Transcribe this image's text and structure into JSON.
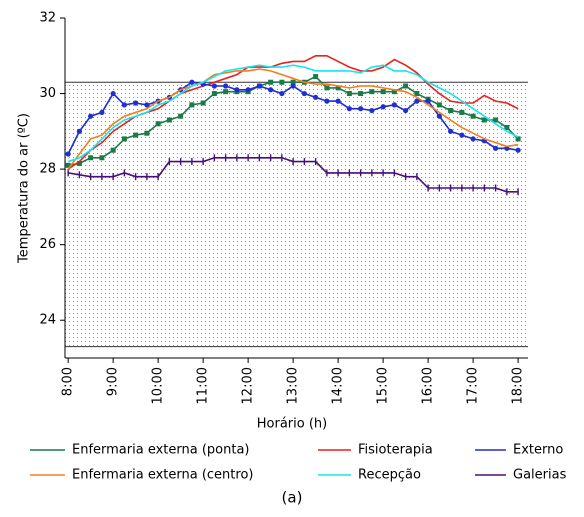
{
  "chart_data": {
    "type": "line",
    "xlabel": "Horário (h)",
    "ylabel": "Temperatura do ar (ºC)",
    "caption": "(a)",
    "x": [
      8,
      8.25,
      8.5,
      8.75,
      9,
      9.25,
      9.5,
      9.75,
      10,
      10.25,
      10.5,
      10.75,
      11,
      11.25,
      11.5,
      11.75,
      12,
      12.25,
      12.5,
      12.75,
      13,
      13.25,
      13.5,
      13.75,
      14,
      14.25,
      14.5,
      14.75,
      15,
      15.25,
      15.5,
      15.75,
      16,
      16.25,
      16.5,
      16.75,
      17,
      17.25,
      17.5,
      17.75,
      18
    ],
    "xlim": [
      7.93,
      18.22
    ],
    "xticks": [
      {
        "value": 8,
        "label": "8:00"
      },
      {
        "value": 9,
        "label": "9:00"
      },
      {
        "value": 10,
        "label": "10:00"
      },
      {
        "value": 11,
        "label": "11:00"
      },
      {
        "value": 12,
        "label": "12:00"
      },
      {
        "value": 13,
        "label": "13:00"
      },
      {
        "value": 14,
        "label": "14:00"
      },
      {
        "value": 15,
        "label": "15:00"
      },
      {
        "value": 16,
        "label": "16:00"
      },
      {
        "value": 17,
        "label": "17:00"
      },
      {
        "value": 18,
        "label": "18:00"
      }
    ],
    "ylim": [
      23,
      32
    ],
    "yticks": [
      24,
      26,
      28,
      30,
      32
    ],
    "band": [
      23.3,
      30.3
    ],
    "series": [
      {
        "name": "Enfermaria externa (ponta)",
        "color": "#1b7a45",
        "marker": "square",
        "values": [
          28.1,
          28.15,
          28.3,
          28.3,
          28.5,
          28.8,
          28.9,
          28.95,
          29.2,
          29.3,
          29.4,
          29.7,
          29.75,
          30.0,
          30.05,
          30.05,
          30.05,
          30.2,
          30.3,
          30.3,
          30.3,
          30.3,
          30.45,
          30.15,
          30.15,
          30.0,
          30.0,
          30.05,
          30.05,
          30.05,
          30.2,
          30.0,
          29.85,
          29.7,
          29.55,
          29.5,
          29.4,
          29.3,
          29.3,
          29.1,
          28.8
        ]
      },
      {
        "name": "Fisioterapia",
        "color": "#e8221c",
        "marker": "none",
        "values": [
          28.0,
          28.2,
          28.5,
          28.7,
          29.0,
          29.2,
          29.4,
          29.5,
          29.6,
          29.8,
          30.0,
          30.1,
          30.2,
          30.3,
          30.4,
          30.5,
          30.7,
          30.7,
          30.7,
          30.8,
          30.85,
          30.85,
          31.0,
          31.0,
          30.85,
          30.7,
          30.6,
          30.6,
          30.7,
          30.9,
          30.75,
          30.55,
          30.25,
          30.0,
          29.8,
          29.75,
          29.75,
          29.95,
          29.8,
          29.75,
          29.6
        ]
      },
      {
        "name": "Externo",
        "color": "#1f2fd0",
        "marker": "circle",
        "values": [
          28.4,
          29.0,
          29.4,
          29.5,
          30.0,
          29.7,
          29.75,
          29.7,
          29.8,
          29.9,
          30.1,
          30.3,
          30.25,
          30.2,
          30.2,
          30.1,
          30.1,
          30.2,
          30.1,
          30.0,
          30.2,
          30.0,
          29.9,
          29.8,
          29.8,
          29.6,
          29.6,
          29.55,
          29.65,
          29.7,
          29.55,
          29.8,
          29.8,
          29.4,
          29.0,
          28.9,
          28.8,
          28.75,
          28.55,
          28.55,
          28.5
        ]
      },
      {
        "name": "Enfermaria externa (centro)",
        "color": "#f07f22",
        "marker": "none",
        "values": [
          28.0,
          28.4,
          28.8,
          28.9,
          29.2,
          29.4,
          29.5,
          29.6,
          29.8,
          29.9,
          30.1,
          30.2,
          30.3,
          30.5,
          30.55,
          30.6,
          30.6,
          30.65,
          30.6,
          30.5,
          30.4,
          30.3,
          30.25,
          30.25,
          30.2,
          30.15,
          30.2,
          30.2,
          30.15,
          30.1,
          30.05,
          29.9,
          29.7,
          29.5,
          29.3,
          29.1,
          28.95,
          28.8,
          28.7,
          28.6,
          28.65
        ]
      },
      {
        "name": "Recepção",
        "color": "#14e6f0",
        "marker": "none",
        "values": [
          28.2,
          28.3,
          28.5,
          28.8,
          29.1,
          29.3,
          29.4,
          29.5,
          29.7,
          29.8,
          30.0,
          30.2,
          30.3,
          30.45,
          30.6,
          30.65,
          30.7,
          30.75,
          30.7,
          30.7,
          30.75,
          30.7,
          30.6,
          30.6,
          30.6,
          30.6,
          30.55,
          30.7,
          30.75,
          30.6,
          30.6,
          30.5,
          30.3,
          30.15,
          30.0,
          29.8,
          29.6,
          29.4,
          29.2,
          29.0,
          28.85
        ]
      },
      {
        "name": "Galerias",
        "color": "#4a0e7a",
        "marker": "plus",
        "values": [
          27.9,
          27.85,
          27.8,
          27.8,
          27.8,
          27.9,
          27.8,
          27.8,
          27.8,
          28.2,
          28.2,
          28.2,
          28.2,
          28.3,
          28.3,
          28.3,
          28.3,
          28.3,
          28.3,
          28.3,
          28.2,
          28.2,
          28.2,
          27.9,
          27.9,
          27.9,
          27.9,
          27.9,
          27.9,
          27.9,
          27.8,
          27.8,
          27.5,
          27.5,
          27.5,
          27.5,
          27.5,
          27.5,
          27.5,
          27.4,
          27.4
        ]
      }
    ]
  }
}
